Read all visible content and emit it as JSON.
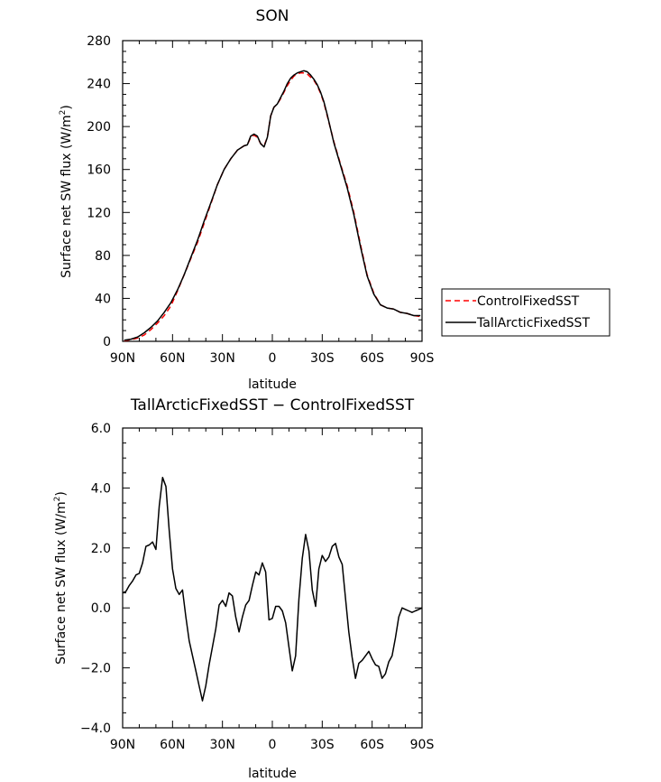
{
  "chart_data": [
    {
      "type": "line",
      "title": "SON",
      "xlabel": "latitude",
      "ylabel": "Surface net SW flux (W/m²)",
      "ylabel_main": "Surface net SW flux (W/m",
      "ylabel_sup": "2",
      "ylabel_tail": ")",
      "xlim": [
        90,
        -90
      ],
      "ylim": [
        0,
        280
      ],
      "x_ticks": [
        90,
        60,
        30,
        0,
        -30,
        -60,
        -90
      ],
      "x_tick_labels": [
        "90N",
        "60N",
        "30N",
        "0",
        "30S",
        "60S",
        "90S"
      ],
      "y_ticks": [
        0,
        40,
        80,
        120,
        160,
        200,
        240,
        280
      ],
      "y_tick_labels": [
        "0",
        "40",
        "80",
        "120",
        "160",
        "200",
        "240",
        "280"
      ],
      "legend": "outside-right",
      "series": [
        {
          "name": "ControlFixedSST",
          "color": "#ff0000",
          "dash": true,
          "x": [
            89,
            85,
            81,
            77,
            73,
            69,
            65,
            61,
            57,
            53,
            49,
            45,
            41,
            37,
            33,
            29,
            25,
            21,
            17,
            15,
            13,
            11,
            9,
            7,
            5,
            3,
            1,
            -1,
            -3,
            -5,
            -7,
            -9,
            -11,
            -13,
            -15,
            -17,
            -19,
            -21,
            -23,
            -25,
            -27,
            -29,
            -31,
            -33,
            -37,
            -41,
            -45,
            -49,
            -53,
            -57,
            -61,
            -65,
            -69,
            -73,
            -77,
            -81,
            -85,
            -89
          ],
          "values": [
            0.5,
            1.5,
            3,
            6,
            11,
            17,
            24,
            33,
            47,
            62,
            77,
            92,
            110,
            128,
            146,
            160,
            170,
            178,
            182,
            183,
            190,
            192,
            190,
            184,
            182,
            190,
            210,
            218,
            221,
            226,
            232,
            238,
            243,
            247,
            249,
            250,
            250,
            249,
            246,
            243,
            238,
            231,
            222,
            210,
            186,
            165,
            145,
            120,
            90,
            62,
            45,
            34,
            31,
            30,
            27,
            26,
            24,
            23
          ]
        },
        {
          "name": "TallArcticFixedSST",
          "color": "#000000",
          "dash": false,
          "x": [
            89,
            85,
            81,
            77,
            73,
            69,
            65,
            61,
            57,
            53,
            49,
            45,
            41,
            37,
            33,
            29,
            25,
            21,
            17,
            15,
            13,
            11,
            9,
            7,
            5,
            3,
            1,
            -1,
            -3,
            -5,
            -7,
            -9,
            -11,
            -13,
            -15,
            -17,
            -19,
            -21,
            -23,
            -25,
            -27,
            -29,
            -31,
            -33,
            -37,
            -41,
            -45,
            -49,
            -53,
            -57,
            -61,
            -65,
            -69,
            -73,
            -77,
            -81,
            -85,
            -89
          ],
          "values": [
            1,
            2,
            4,
            8,
            13,
            19,
            27,
            36,
            48,
            62,
            78,
            94,
            112,
            129,
            146,
            160,
            170,
            178,
            182,
            183,
            191,
            193,
            191,
            184,
            181,
            190,
            210,
            218,
            221,
            227,
            233,
            240,
            245,
            248,
            250,
            251,
            252,
            251,
            248,
            244,
            239,
            232,
            223,
            211,
            185,
            164,
            143,
            118,
            88,
            61,
            44,
            34,
            31,
            30,
            27,
            26,
            24,
            24
          ]
        }
      ]
    },
    {
      "type": "line",
      "title": "TallArcticFixedSST − ControlFixedSST",
      "xlabel": "latitude",
      "ylabel": "Surface net SW flux (W/m²)",
      "ylabel_main": "Surface net SW flux (W/m",
      "ylabel_sup": "2",
      "ylabel_tail": ")",
      "xlim": [
        90,
        -90
      ],
      "ylim": [
        -4,
        6
      ],
      "x_ticks": [
        90,
        60,
        30,
        0,
        -30,
        -60,
        -90
      ],
      "x_tick_labels": [
        "90N",
        "60N",
        "30N",
        "0",
        "30S",
        "60S",
        "90S"
      ],
      "y_ticks": [
        -4,
        -2,
        0,
        2,
        4,
        6
      ],
      "y_tick_labels": [
        "−4.0",
        "−2.0",
        "0.0",
        "2.0",
        "4.0",
        "6.0"
      ],
      "series": [
        {
          "color": "#000000",
          "x": [
            90,
            88,
            86,
            84,
            82,
            80,
            78,
            76,
            74,
            72,
            70,
            68,
            66,
            64,
            62,
            60,
            58,
            56,
            54,
            52,
            50,
            48,
            46,
            44,
            42,
            40,
            38,
            36,
            34,
            32,
            30,
            28,
            26,
            24,
            22,
            20,
            18,
            16,
            14,
            12,
            10,
            8,
            6,
            4,
            2,
            0,
            -2,
            -4,
            -6,
            -8,
            -10,
            -12,
            -14,
            -16,
            -18,
            -20,
            -22,
            -24,
            -26,
            -28,
            -30,
            -32,
            -34,
            -36,
            -38,
            -40,
            -42,
            -44,
            -46,
            -48,
            -50,
            -52,
            -54,
            -56,
            -58,
            -60,
            -62,
            -64,
            -66,
            -68,
            -70,
            -72,
            -74,
            -76,
            -78,
            -80,
            -82,
            -84,
            -86,
            -88,
            -90
          ],
          "values": [
            0.5,
            0.55,
            0.75,
            0.9,
            1.1,
            1.15,
            1.5,
            2.05,
            2.1,
            2.2,
            1.95,
            3.4,
            4.35,
            4.05,
            2.6,
            1.3,
            0.65,
            0.45,
            0.6,
            -0.3,
            -1.1,
            -1.6,
            -2.1,
            -2.6,
            -3.1,
            -2.6,
            -1.9,
            -1.3,
            -0.7,
            0.1,
            0.25,
            0.05,
            0.5,
            0.4,
            -0.3,
            -0.8,
            -0.3,
            0.1,
            0.25,
            0.75,
            1.2,
            1.1,
            1.5,
            1.2,
            -0.4,
            -0.35,
            0.05,
            0.05,
            -0.1,
            -0.5,
            -1.3,
            -2.1,
            -1.6,
            0.3,
            1.65,
            2.45,
            1.9,
            0.6,
            0.05,
            1.3,
            1.75,
            1.55,
            1.7,
            2.05,
            2.15,
            1.7,
            1.45,
            0.3,
            -0.8,
            -1.65,
            -2.35,
            -1.85,
            -1.75,
            -1.6,
            -1.45,
            -1.7,
            -1.9,
            -1.95,
            -2.35,
            -2.2,
            -1.8,
            -1.6,
            -1.0,
            -0.3,
            0.0,
            -0.05,
            -0.1,
            -0.15,
            -0.1,
            -0.05,
            0.0
          ]
        }
      ]
    }
  ]
}
